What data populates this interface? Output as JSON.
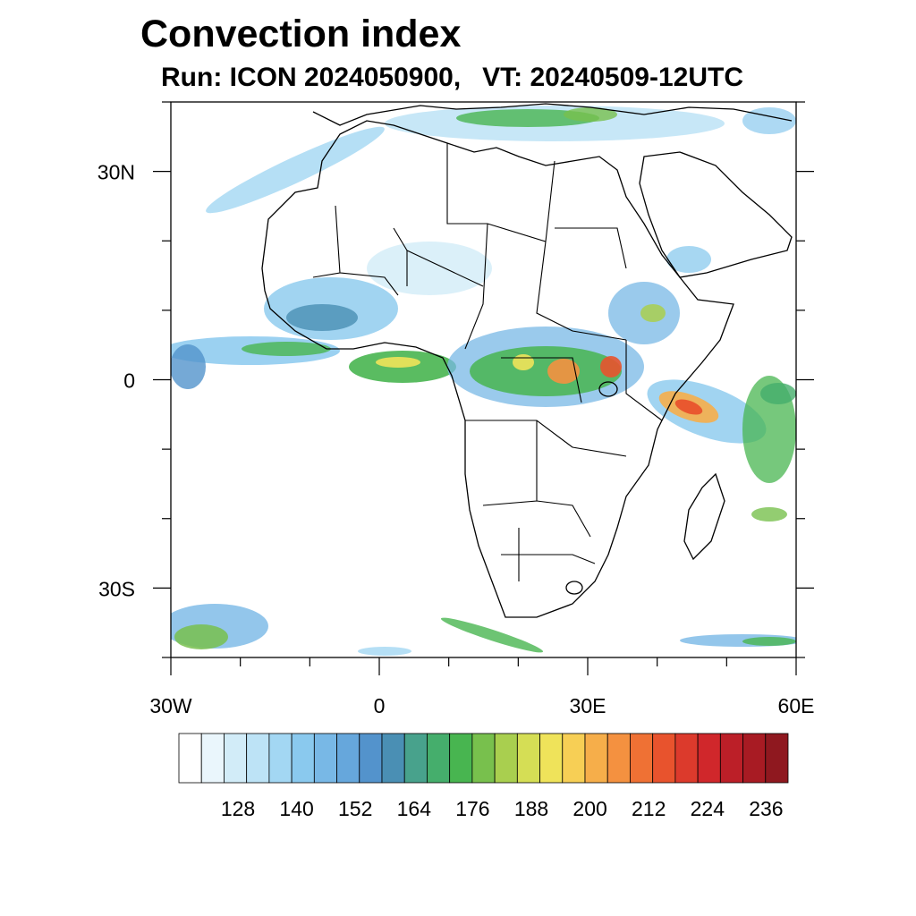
{
  "title": "Convection index",
  "subtitle": {
    "run": "Run: ICON 2024050900,",
    "valid_time": "VT: 20240509-12UTC"
  },
  "map": {
    "lon_range": [
      -30,
      60
    ],
    "lat_range": [
      -40,
      40
    ],
    "lat_labels": [
      {
        "lat": 30,
        "text": "30N"
      },
      {
        "lat": 0,
        "text": "0"
      },
      {
        "lat": -30,
        "text": "30S"
      }
    ],
    "lon_labels": [
      {
        "lon": -30,
        "text": "30W"
      },
      {
        "lon": 0,
        "text": "0"
      },
      {
        "lon": 30,
        "text": "30E"
      },
      {
        "lon": 60,
        "text": "60E"
      }
    ]
  },
  "colorbar": {
    "labels": [
      "128",
      "140",
      "152",
      "164",
      "176",
      "188",
      "200",
      "212",
      "224",
      "236"
    ],
    "colors": [
      "#ffffff",
      "#eaf6fc",
      "#d2ecf8",
      "#bde3f6",
      "#a3d7f3",
      "#8ac9ee",
      "#78b8e6",
      "#66a7dc",
      "#5393cc",
      "#4a8fb4",
      "#48a28c",
      "#45ae6c",
      "#48b550",
      "#78c04d",
      "#a9cf4f",
      "#d5de55",
      "#efe35a",
      "#f7cf55",
      "#f6ae4a",
      "#f49140",
      "#ef7134",
      "#e8532d",
      "#dc3a2c",
      "#d0272b",
      "#bc1f28",
      "#a81b23",
      "#8f181f"
    ]
  },
  "fields": {
    "coastline_color": "#000000",
    "border_color": "#000000"
  }
}
